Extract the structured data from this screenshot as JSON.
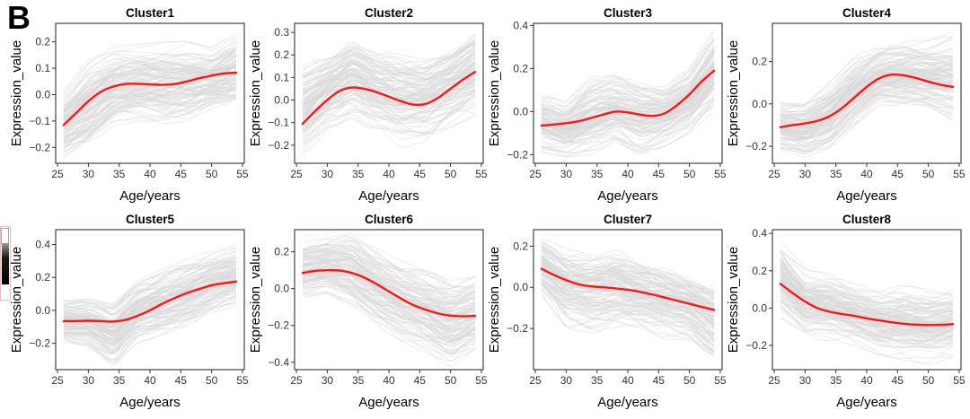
{
  "figure": {
    "label": "B",
    "background": "#ffffff",
    "trend_color": "#ff1414",
    "spaghetti_color": "#d9d9d9",
    "axis_color": "#333333",
    "title_color": "#000000"
  },
  "chart_data": [
    {
      "type": "line",
      "title": "Cluster1",
      "xlabel": "Age/years",
      "ylabel": "Expression_value",
      "x_ticks": [
        25,
        30,
        35,
        40,
        45,
        50,
        55
      ],
      "y_ticks": [
        -0.2,
        -0.1,
        0.0,
        0.1,
        0.2
      ],
      "xlim": [
        24.7,
        55.3
      ],
      "ylim": [
        -0.26,
        0.27
      ],
      "grid": false,
      "legend": "none",
      "x": [
        26,
        28,
        30,
        32,
        34,
        36,
        38,
        40,
        42,
        44,
        46,
        48,
        50,
        52,
        54
      ],
      "trend": [
        -0.115,
        -0.07,
        -0.025,
        0.01,
        0.03,
        0.04,
        0.041,
        0.039,
        0.037,
        0.04,
        0.05,
        0.062,
        0.072,
        0.08,
        0.083
      ],
      "envelope_x": [
        26,
        30,
        34,
        38,
        42,
        46,
        50,
        54
      ],
      "envelope_lower": [
        -0.24,
        -0.2,
        -0.12,
        -0.1,
        -0.11,
        -0.1,
        -0.06,
        -0.05
      ],
      "envelope_upper": [
        0.02,
        0.13,
        0.18,
        0.19,
        0.2,
        0.2,
        0.18,
        0.24
      ]
    },
    {
      "type": "line",
      "title": "Cluster2",
      "xlabel": "Age/years",
      "ylabel": "Expression_value",
      "x_ticks": [
        25,
        30,
        35,
        40,
        45,
        50,
        55
      ],
      "y_ticks": [
        -0.2,
        -0.1,
        0.0,
        0.1,
        0.2,
        0.3
      ],
      "xlim": [
        24.7,
        55.3
      ],
      "ylim": [
        -0.28,
        0.34
      ],
      "grid": false,
      "legend": "none",
      "x": [
        26,
        28,
        30,
        32,
        34,
        36,
        38,
        40,
        42,
        44,
        46,
        48,
        50,
        52,
        54
      ],
      "trend": [
        -0.105,
        -0.05,
        0.0,
        0.04,
        0.056,
        0.05,
        0.035,
        0.015,
        -0.005,
        -0.02,
        -0.017,
        0.01,
        0.05,
        0.09,
        0.125
      ],
      "envelope_x": [
        26,
        30,
        34,
        38,
        42,
        46,
        50,
        54
      ],
      "envelope_lower": [
        -0.26,
        -0.13,
        -0.08,
        -0.15,
        -0.21,
        -0.18,
        -0.12,
        -0.07
      ],
      "envelope_upper": [
        0.15,
        0.2,
        0.27,
        0.22,
        0.2,
        0.18,
        0.23,
        0.31
      ]
    },
    {
      "type": "line",
      "title": "Cluster3",
      "xlabel": "Age/years",
      "ylabel": "Expression_value",
      "x_ticks": [
        25,
        30,
        35,
        40,
        45,
        50,
        55
      ],
      "y_ticks": [
        -0.2,
        0.0,
        0.2,
        0.4
      ],
      "xlim": [
        24.7,
        55.3
      ],
      "ylim": [
        -0.24,
        0.41
      ],
      "grid": false,
      "legend": "none",
      "x": [
        26,
        28,
        30,
        32,
        34,
        36,
        38,
        40,
        42,
        44,
        46,
        48,
        50,
        52,
        54
      ],
      "trend": [
        -0.065,
        -0.06,
        -0.054,
        -0.045,
        -0.03,
        -0.014,
        0.0,
        -0.004,
        -0.014,
        -0.02,
        -0.008,
        0.03,
        0.08,
        0.14,
        0.19
      ],
      "envelope_x": [
        26,
        30,
        34,
        38,
        42,
        46,
        50,
        54
      ],
      "envelope_lower": [
        -0.19,
        -0.21,
        -0.2,
        -0.16,
        -0.21,
        -0.16,
        -0.1,
        0.0
      ],
      "envelope_upper": [
        0.08,
        0.05,
        0.16,
        0.18,
        0.15,
        0.13,
        0.21,
        0.38
      ]
    },
    {
      "type": "line",
      "title": "Cluster4",
      "xlabel": "Age/years",
      "ylabel": "Expression_value",
      "x_ticks": [
        25,
        30,
        35,
        40,
        45,
        50,
        55
      ],
      "y_ticks": [
        -0.2,
        0.0,
        0.2
      ],
      "xlim": [
        24.7,
        55.3
      ],
      "ylim": [
        -0.28,
        0.38
      ],
      "grid": false,
      "legend": "none",
      "x": [
        26,
        28,
        30,
        32,
        34,
        36,
        38,
        40,
        42,
        44,
        46,
        48,
        50,
        52,
        54
      ],
      "trend": [
        -0.11,
        -0.1,
        -0.092,
        -0.08,
        -0.058,
        -0.02,
        0.03,
        0.08,
        0.12,
        0.138,
        0.135,
        0.122,
        0.105,
        0.09,
        0.08
      ],
      "envelope_x": [
        26,
        30,
        34,
        38,
        42,
        46,
        50,
        54
      ],
      "envelope_lower": [
        -0.22,
        -0.25,
        -0.21,
        -0.11,
        -0.01,
        -0.02,
        -0.03,
        -0.08
      ],
      "envelope_upper": [
        0.02,
        0.02,
        0.1,
        0.22,
        0.28,
        0.3,
        0.3,
        0.34
      ]
    },
    {
      "type": "line",
      "title": "Cluster5",
      "xlabel": "Age/years",
      "ylabel": "Expression_value",
      "x_ticks": [
        25,
        30,
        35,
        40,
        45,
        50,
        55
      ],
      "y_ticks": [
        -0.2,
        0.0,
        0.2,
        0.4
      ],
      "xlim": [
        24.7,
        55.3
      ],
      "ylim": [
        -0.36,
        0.49
      ],
      "grid": false,
      "legend": "none",
      "x": [
        26,
        28,
        30,
        32,
        34,
        36,
        38,
        40,
        42,
        44,
        46,
        48,
        50,
        52,
        54
      ],
      "trend": [
        -0.065,
        -0.065,
        -0.063,
        -0.065,
        -0.068,
        -0.058,
        -0.033,
        0.0,
        0.04,
        0.075,
        0.105,
        0.13,
        0.152,
        0.165,
        0.175
      ],
      "envelope_x": [
        26,
        30,
        34,
        38,
        42,
        46,
        50,
        54
      ],
      "envelope_lower": [
        -0.2,
        -0.22,
        -0.33,
        -0.2,
        -0.15,
        -0.1,
        -0.02,
        0.03
      ],
      "envelope_upper": [
        0.08,
        0.08,
        0.06,
        0.2,
        0.26,
        0.31,
        0.36,
        0.4
      ]
    },
    {
      "type": "line",
      "title": "Cluster6",
      "xlabel": "Age/years",
      "ylabel": "Expression_value",
      "x_ticks": [
        25,
        30,
        35,
        40,
        45,
        50,
        55
      ],
      "y_ticks": [
        -0.4,
        -0.2,
        0.0,
        0.2
      ],
      "xlim": [
        24.7,
        55.3
      ],
      "ylim": [
        -0.44,
        0.32
      ],
      "grid": false,
      "legend": "none",
      "x": [
        26,
        28,
        30,
        32,
        34,
        36,
        38,
        40,
        42,
        44,
        46,
        48,
        50,
        52,
        54
      ],
      "trend": [
        0.085,
        0.096,
        0.1,
        0.098,
        0.085,
        0.06,
        0.025,
        -0.015,
        -0.055,
        -0.09,
        -0.115,
        -0.135,
        -0.147,
        -0.15,
        -0.148
      ],
      "envelope_x": [
        26,
        30,
        34,
        38,
        42,
        46,
        50,
        54
      ],
      "envelope_lower": [
        -0.05,
        -0.03,
        -0.1,
        -0.21,
        -0.3,
        -0.35,
        -0.42,
        -0.35
      ],
      "envelope_upper": [
        0.25,
        0.28,
        0.3,
        0.22,
        0.15,
        0.1,
        0.05,
        0.08
      ]
    },
    {
      "type": "line",
      "title": "Cluster7",
      "xlabel": "Age/years",
      "ylabel": "Expression_value",
      "x_ticks": [
        25,
        30,
        35,
        40,
        45,
        50,
        55
      ],
      "y_ticks": [
        -0.2,
        0.0,
        0.2
      ],
      "xlim": [
        24.7,
        55.3
      ],
      "ylim": [
        -0.4,
        0.28
      ],
      "grid": false,
      "legend": "none",
      "x": [
        26,
        28,
        30,
        32,
        34,
        36,
        38,
        40,
        42,
        44,
        46,
        48,
        50,
        52,
        54
      ],
      "trend": [
        0.09,
        0.06,
        0.035,
        0.015,
        0.005,
        0.0,
        -0.005,
        -0.012,
        -0.022,
        -0.035,
        -0.05,
        -0.065,
        -0.08,
        -0.095,
        -0.11
      ],
      "envelope_x": [
        26,
        30,
        34,
        38,
        42,
        46,
        50,
        54
      ],
      "envelope_lower": [
        -0.06,
        -0.2,
        -0.22,
        -0.2,
        -0.22,
        -0.25,
        -0.26,
        -0.38
      ],
      "envelope_upper": [
        0.26,
        0.2,
        0.18,
        0.2,
        0.15,
        0.12,
        0.08,
        0.05
      ]
    },
    {
      "type": "line",
      "title": "Cluster8",
      "xlabel": "Age/years",
      "ylabel": "Expression_value",
      "x_ticks": [
        25,
        30,
        35,
        40,
        45,
        50,
        55
      ],
      "y_ticks": [
        -0.2,
        0.0,
        0.2,
        0.4
      ],
      "xlim": [
        24.7,
        55.3
      ],
      "ylim": [
        -0.33,
        0.42
      ],
      "grid": false,
      "legend": "none",
      "x": [
        26,
        28,
        30,
        32,
        34,
        36,
        38,
        40,
        42,
        44,
        46,
        48,
        50,
        52,
        54
      ],
      "trend": [
        0.13,
        0.08,
        0.035,
        0.0,
        -0.02,
        -0.032,
        -0.042,
        -0.055,
        -0.066,
        -0.076,
        -0.084,
        -0.089,
        -0.091,
        -0.09,
        -0.086
      ],
      "envelope_x": [
        26,
        30,
        34,
        38,
        42,
        46,
        50,
        54
      ],
      "envelope_lower": [
        -0.05,
        -0.16,
        -0.18,
        -0.2,
        -0.25,
        -0.28,
        -0.3,
        -0.28
      ],
      "envelope_upper": [
        0.37,
        0.21,
        0.18,
        0.13,
        0.1,
        0.12,
        0.1,
        0.12
      ]
    }
  ]
}
